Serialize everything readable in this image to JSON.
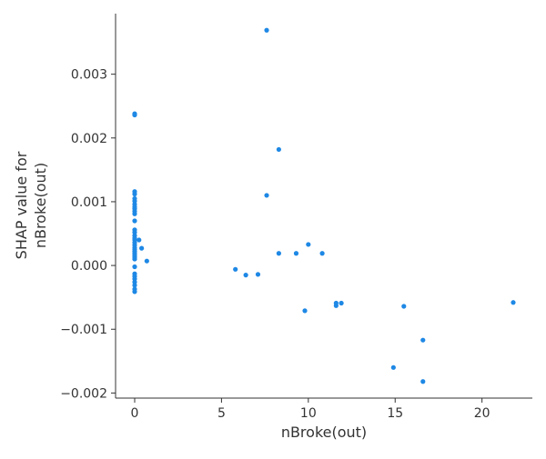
{
  "chart_data": {
    "type": "scatter",
    "title": "",
    "xlabel": "nBroke(out)",
    "ylabel_lines": [
      "SHAP value for",
      "nBroke(out)"
    ],
    "xlim": [
      -1.1,
      22.9
    ],
    "ylim": [
      -0.00208,
      0.00395
    ],
    "xticks": [
      0,
      5,
      10,
      15,
      20
    ],
    "xtick_labels": [
      "0",
      "5",
      "10",
      "15",
      "20"
    ],
    "yticks": [
      -0.002,
      -0.001,
      0.0,
      0.001,
      0.002,
      0.003
    ],
    "ytick_labels": [
      "−0.002",
      "−0.001",
      "0.000",
      "0.001",
      "0.002",
      "0.003"
    ],
    "grid": false,
    "point_color": "#1e88e5",
    "series": [
      {
        "points": [
          [
            0,
            0.00238
          ],
          [
            0,
            0.00236
          ],
          [
            0,
            0.00116
          ],
          [
            0,
            0.00112
          ],
          [
            0,
            0.00105
          ],
          [
            0,
            0.00101
          ],
          [
            0,
            0.00096
          ],
          [
            0,
            0.00092
          ],
          [
            0,
            0.00089
          ],
          [
            0,
            0.00085
          ],
          [
            0,
            0.00081
          ],
          [
            0,
            0.0007
          ],
          [
            0,
            0.00056
          ],
          [
            0,
            0.00052
          ],
          [
            0,
            0.00047
          ],
          [
            0,
            0.00043
          ],
          [
            0,
            0.0004
          ],
          [
            0,
            0.00036
          ],
          [
            0,
            0.00032
          ],
          [
            0,
            0.00028
          ],
          [
            0,
            0.00025
          ],
          [
            0,
            0.00022
          ],
          [
            0,
            0.00019
          ],
          [
            0,
            0.00016
          ],
          [
            0,
            0.00013
          ],
          [
            0,
            0.0001
          ],
          [
            0,
            -2e-05
          ],
          [
            0,
            -0.00013
          ],
          [
            0,
            -0.00017
          ],
          [
            0,
            -0.00021
          ],
          [
            0,
            -0.00026
          ],
          [
            0,
            -0.00031
          ],
          [
            0,
            -0.00037
          ],
          [
            0,
            -0.00041
          ],
          [
            0.25,
            0.0004
          ],
          [
            0.4,
            0.00027
          ],
          [
            0.7,
            7e-05
          ],
          [
            5.8,
            -6e-05
          ],
          [
            6.4,
            -0.00015
          ],
          [
            7.1,
            -0.00014
          ],
          [
            7.6,
            0.00369
          ],
          [
            7.6,
            0.0011
          ],
          [
            8.3,
            0.00182
          ],
          [
            8.3,
            0.00019
          ],
          [
            9.3,
            0.00019
          ],
          [
            9.8,
            -0.00071
          ],
          [
            10.0,
            0.00033
          ],
          [
            10.8,
            0.00019
          ],
          [
            11.6,
            -0.00059
          ],
          [
            11.6,
            -0.00063
          ],
          [
            11.9,
            -0.00059
          ],
          [
            14.9,
            -0.0016
          ],
          [
            15.5,
            -0.00064
          ],
          [
            16.6,
            -0.00117
          ],
          [
            16.6,
            -0.00182
          ],
          [
            21.8,
            -0.00058
          ]
        ]
      }
    ]
  }
}
